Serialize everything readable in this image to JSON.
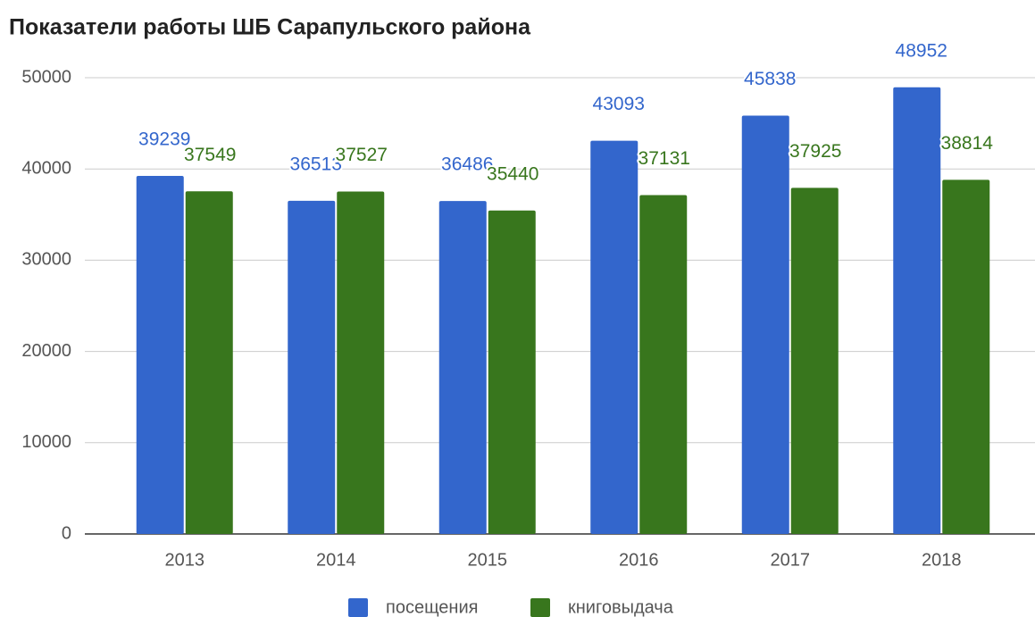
{
  "chart_data": {
    "type": "bar",
    "title": "Показатели работы ШБ Сарапульского района",
    "categories": [
      "2013",
      "2014",
      "2015",
      "2016",
      "2017",
      "2018"
    ],
    "series": [
      {
        "name": "посещения",
        "color": "#3366cc",
        "values": [
          39239,
          36513,
          36486,
          43093,
          45838,
          48952
        ]
      },
      {
        "name": "книговыдача",
        "color": "#38761d",
        "values": [
          37549,
          37527,
          35440,
          37131,
          37925,
          38814
        ]
      }
    ],
    "ylim": [
      0,
      50000
    ],
    "yticks": [
      0,
      10000,
      20000,
      30000,
      40000,
      50000
    ],
    "grid": true,
    "legend": "bottom"
  }
}
